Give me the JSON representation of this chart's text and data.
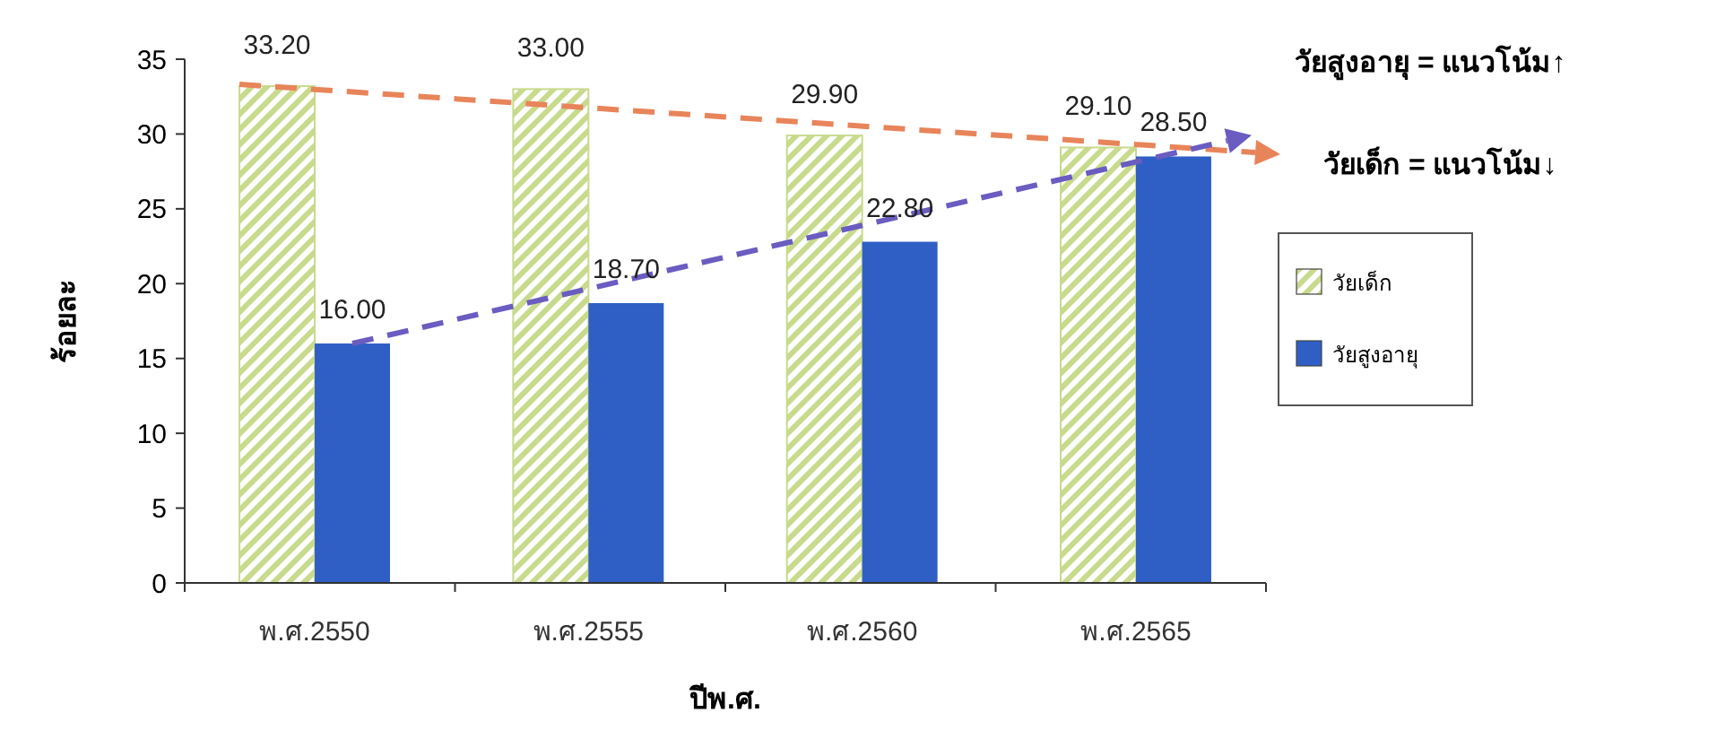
{
  "chart_data": {
    "type": "bar",
    "ylabel": "ร้อยละ",
    "xlabel": "ปีพ.ศ.",
    "categories": [
      "พ.ศ.2550",
      "พ.ศ.2555",
      "พ.ศ.2560",
      "พ.ศ.2565"
    ],
    "series": [
      {
        "name": "วัยเด็ก",
        "color": "#c8da8c",
        "values": [
          33.2,
          33.0,
          29.9,
          29.1
        ],
        "value_labels": [
          "33.20",
          "33.00",
          "29.90",
          "29.10"
        ]
      },
      {
        "name": "วัยสูงอายุ",
        "color": "#2f5fc4",
        "values": [
          16.0,
          18.7,
          22.8,
          28.5
        ],
        "value_labels": [
          "16.00",
          "18.70",
          "22.80",
          "28.50"
        ]
      }
    ],
    "ylim": [
      0,
      35
    ],
    "yticks": [
      0,
      5,
      10,
      15,
      20,
      25,
      30,
      35
    ],
    "grid": false,
    "legend": "right",
    "annotations": [
      "วัยสูงอายุ = แนวโน้ม↑",
      "วัยเด็ก = แนวโน้ม↓"
    ]
  }
}
